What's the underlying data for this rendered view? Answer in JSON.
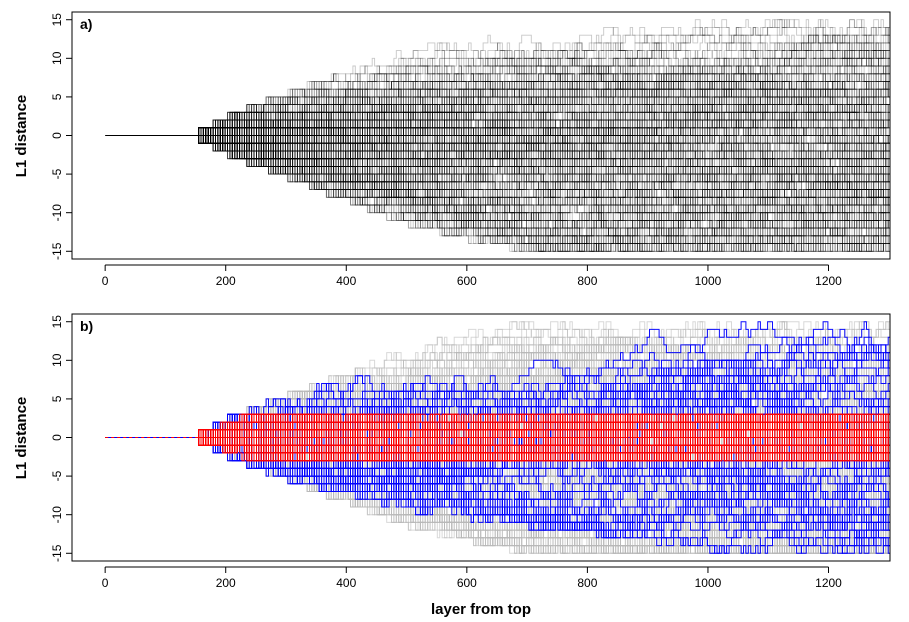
{
  "chart_data": [
    {
      "panel": "a)",
      "type": "line",
      "title": "",
      "ylabel": "L1 distance",
      "xlabel": "",
      "xlim": [
        -55,
        1302
      ],
      "ylim": [
        -16,
        16
      ],
      "x_ticks": [
        0,
        200,
        400,
        600,
        800,
        1000,
        1200
      ],
      "y_ticks": [
        15,
        10,
        5,
        0,
        -5,
        -10,
        -15
      ],
      "grid": false,
      "series": [
        {
          "role": "trajectories",
          "color": "#000000",
          "count": 260,
          "start_x": 0,
          "start_y": 0,
          "split_x": 155,
          "end_x": 1302,
          "spread_envelope": [
            [
              155,
              1
            ],
            [
              200,
              3
            ],
            [
              300,
              6
            ],
            [
              400,
              9
            ],
            [
              500,
              12
            ],
            [
              600,
              14
            ],
            [
              700,
              15.5
            ],
            [
              1302,
              16
            ]
          ]
        }
      ]
    },
    {
      "panel": "b)",
      "type": "line",
      "title": "",
      "ylabel": "L1 distance",
      "xlabel": "layer from top",
      "xlim": [
        -55,
        1302
      ],
      "ylim": [
        -16,
        16
      ],
      "x_ticks": [
        0,
        200,
        400,
        600,
        800,
        1000,
        1200
      ],
      "y_ticks": [
        15,
        10,
        5,
        0,
        -5,
        -10,
        -15
      ],
      "grid": false,
      "series": [
        {
          "role": "background trajectories",
          "color": "#b8b8b8",
          "count": 260,
          "start_x": 0,
          "start_y": 0,
          "split_x": 155,
          "end_x": 1302,
          "spread_envelope": [
            [
              155,
              1
            ],
            [
              200,
              3
            ],
            [
              300,
              6
            ],
            [
              400,
              9
            ],
            [
              500,
              12
            ],
            [
              600,
              14
            ],
            [
              700,
              15.5
            ],
            [
              1302,
              16
            ]
          ]
        },
        {
          "role": "highlighted trajectories",
          "color": "#0000ff",
          "count": 60,
          "start_x": 0,
          "start_y": 0,
          "split_x": 155,
          "end_x": 1302,
          "spread_envelope": [
            [
              155,
              1
            ],
            [
              200,
              3
            ],
            [
              300,
              6
            ],
            [
              500,
              10
            ],
            [
              800,
              13
            ],
            [
              1000,
              15
            ],
            [
              1302,
              16
            ]
          ]
        },
        {
          "role": "central trajectories",
          "color": "#ff0000",
          "count": 40,
          "start_x": 0,
          "start_y": 0,
          "split_x": 155,
          "end_x": 1302,
          "spread_envelope": [
            [
              155,
              1
            ],
            [
              220,
              3
            ],
            [
              1302,
              3
            ]
          ]
        }
      ]
    }
  ]
}
